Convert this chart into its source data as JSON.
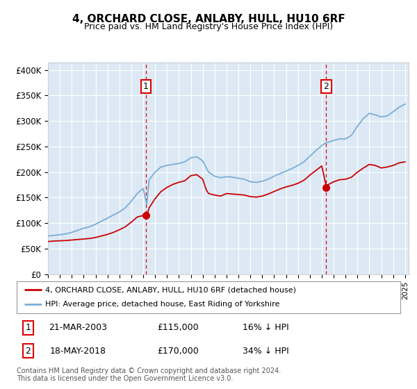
{
  "title": "4, ORCHARD CLOSE, ANLABY, HULL, HU10 6RF",
  "subtitle": "Price paid vs. HM Land Registry's House Price Index (HPI)",
  "legend_label_red": "4, ORCHARD CLOSE, ANLABY, HULL, HU10 6RF (detached house)",
  "legend_label_blue": "HPI: Average price, detached house, East Riding of Yorkshire",
  "footer": "Contains HM Land Registry data © Crown copyright and database right 2024.\nThis data is licensed under the Open Government Licence v3.0.",
  "sale1_date": "21-MAR-2003",
  "sale1_price": "£115,000",
  "sale1_pct": "16% ↓ HPI",
  "sale1_year": 2003.22,
  "sale1_value": 115000,
  "sale2_date": "18-MAY-2018",
  "sale2_price": "£170,000",
  "sale2_pct": "34% ↓ HPI",
  "sale2_year": 2018.38,
  "sale2_value": 170000,
  "yticks": [
    0,
    50000,
    100000,
    150000,
    200000,
    250000,
    300000,
    350000,
    400000
  ],
  "ytick_labels": [
    "£0",
    "£50K",
    "£100K",
    "£150K",
    "£200K",
    "£250K",
    "£300K",
    "£350K",
    "£400K"
  ],
  "bg_color": "#dce9f5",
  "red_color": "#cc0000",
  "blue_color": "#7aadd4",
  "grid_color": "#ffffff",
  "dashed_color": "#dd0000",
  "years_hpi": [
    1995,
    1995.5,
    1996,
    1996.5,
    1997,
    1997.5,
    1998,
    1998.5,
    1999,
    1999.5,
    2000,
    2000.5,
    2001,
    2001.5,
    2002,
    2002.5,
    2003,
    2003.3,
    2003.5,
    2004,
    2004.5,
    2005,
    2005.5,
    2006,
    2006.5,
    2007,
    2007.5,
    2008,
    2008.3,
    2008.5,
    2009,
    2009.5,
    2010,
    2010.5,
    2011,
    2011.5,
    2012,
    2012.5,
    2013,
    2013.5,
    2014,
    2014.5,
    2015,
    2015.5,
    2016,
    2016.5,
    2017,
    2017.5,
    2018,
    2018.4,
    2018.5,
    2019,
    2019.5,
    2020,
    2020.5,
    2021,
    2021.5,
    2022,
    2022.5,
    2023,
    2023.5,
    2024,
    2024.5,
    2025
  ],
  "hpi_values": [
    75000,
    76000,
    77500,
    79000,
    82000,
    86000,
    90000,
    93000,
    98000,
    104000,
    110000,
    116000,
    122000,
    130000,
    143000,
    158000,
    168000,
    136000,
    185000,
    200000,
    210000,
    213000,
    215000,
    217000,
    220000,
    228000,
    230000,
    222000,
    208000,
    200000,
    192000,
    189000,
    191000,
    190000,
    188000,
    186000,
    181000,
    180000,
    182000,
    186000,
    192000,
    197000,
    202000,
    207000,
    213000,
    220000,
    231000,
    242000,
    252000,
    258000,
    258000,
    262000,
    265000,
    265000,
    272000,
    290000,
    305000,
    315000,
    312000,
    308000,
    310000,
    318000,
    327000,
    333000
  ],
  "red_values": [
    64000,
    65000,
    65500,
    66000,
    67000,
    68000,
    69000,
    70000,
    72000,
    75000,
    78000,
    82000,
    87000,
    93000,
    102000,
    112000,
    115000,
    115000,
    130000,
    148000,
    162000,
    170000,
    176000,
    180000,
    183000,
    193000,
    195000,
    186000,
    165000,
    158000,
    155000,
    153000,
    158000,
    157000,
    156000,
    155000,
    152000,
    151000,
    153000,
    157000,
    162000,
    167000,
    171000,
    174000,
    178000,
    184000,
    194000,
    203000,
    212000,
    170000,
    175000,
    181000,
    185000,
    186000,
    190000,
    200000,
    208000,
    215000,
    213000,
    208000,
    210000,
    213000,
    218000,
    220000
  ]
}
